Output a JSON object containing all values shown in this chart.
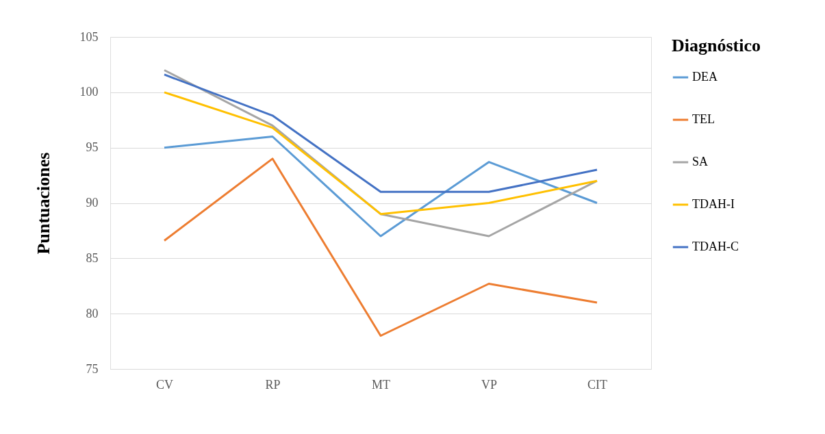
{
  "chart_data": {
    "type": "line",
    "ylabel": "Puntuaciones",
    "legend_title": "Diagnóstico",
    "categories": [
      "CV",
      "RP",
      "MT",
      "VP",
      "CIT"
    ],
    "series": [
      {
        "name": "DEA",
        "color": "#5b9bd5",
        "values": [
          95,
          96,
          87,
          93.7,
          90
        ]
      },
      {
        "name": "TEL",
        "color": "#ed7d31",
        "values": [
          86.6,
          94,
          78,
          82.7,
          81
        ]
      },
      {
        "name": "SA",
        "color": "#a5a5a5",
        "values": [
          102,
          97,
          89,
          87,
          92
        ]
      },
      {
        "name": "TDAH-I",
        "color": "#ffc000",
        "values": [
          100,
          96.8,
          89,
          90,
          92
        ]
      },
      {
        "name": "TDAH-C",
        "color": "#4472c4",
        "values": [
          101.6,
          97.9,
          91,
          91,
          93
        ]
      }
    ],
    "ylim": [
      75,
      105
    ],
    "yticks": [
      75,
      80,
      85,
      90,
      95,
      100,
      105
    ],
    "grid": "y",
    "legend": "right",
    "marker": "none",
    "line_style": "solid"
  }
}
